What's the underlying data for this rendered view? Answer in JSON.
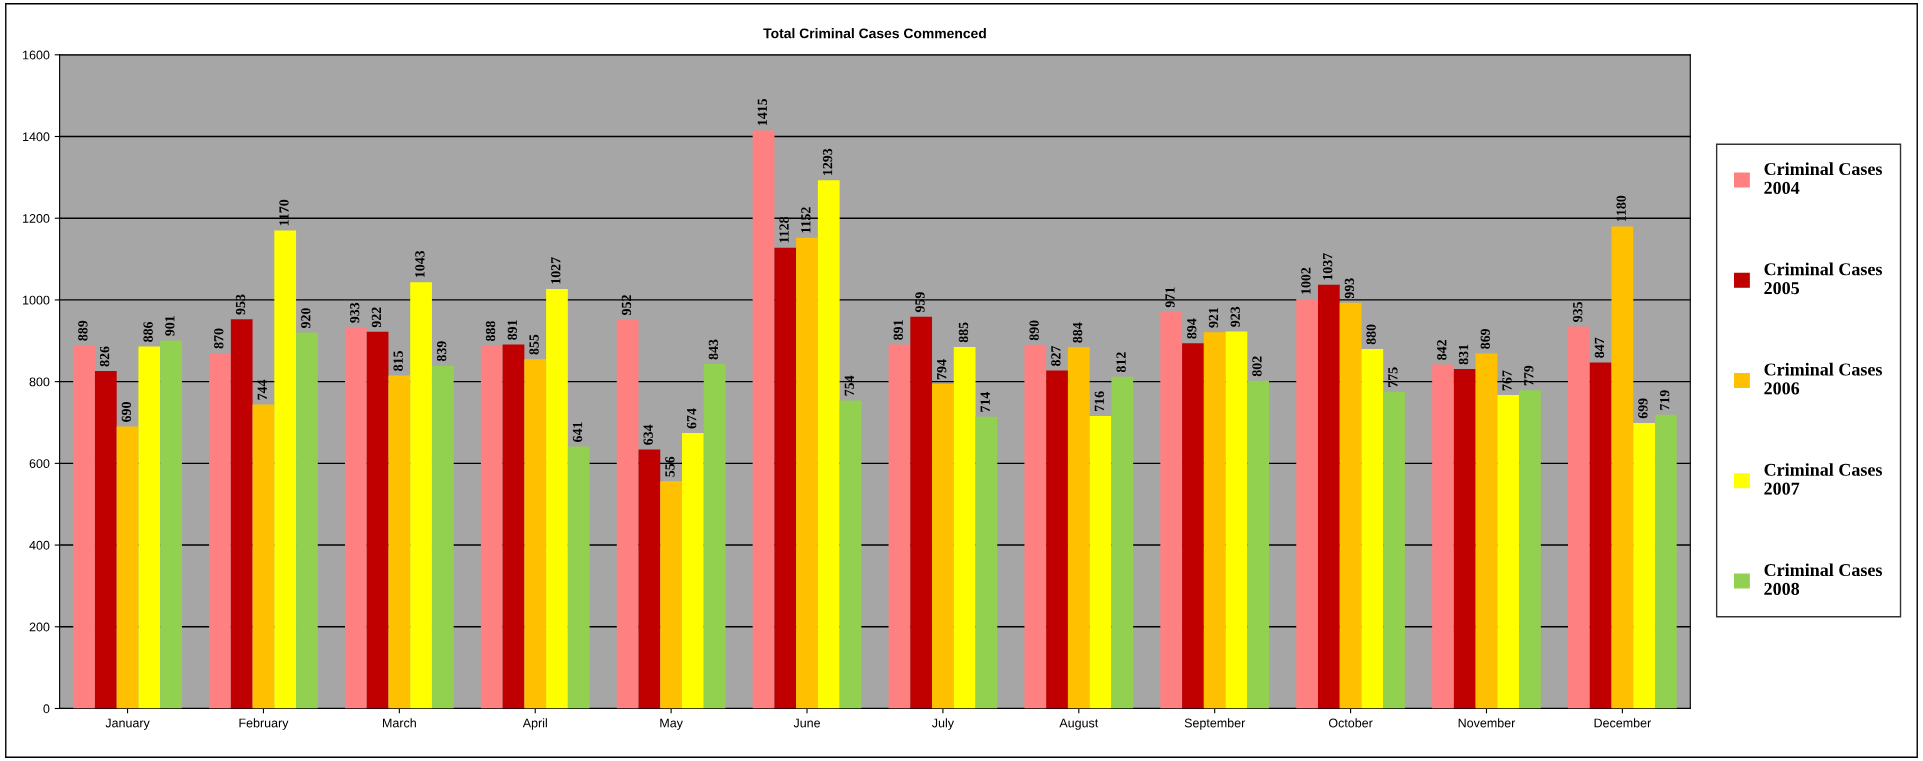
{
  "chart_data": {
    "type": "bar",
    "title": "Total Criminal Cases Commenced",
    "categories": [
      "January",
      "February",
      "March",
      "April",
      "May",
      "June",
      "July",
      "August",
      "September",
      "October",
      "November",
      "December"
    ],
    "series": [
      {
        "name": "Criminal Cases 2004",
        "color": "#ff8080",
        "values": [
          889,
          870,
          933,
          888,
          952,
          1415,
          891,
          890,
          971,
          1002,
          842,
          935
        ]
      },
      {
        "name": "Criminal Cases 2005",
        "color": "#c00000",
        "values": [
          826,
          953,
          922,
          891,
          634,
          1128,
          959,
          827,
          894,
          1037,
          831,
          847
        ]
      },
      {
        "name": "Criminal Cases 2006",
        "color": "#ffc000",
        "values": [
          690,
          744,
          815,
          855,
          556,
          1152,
          794,
          884,
          921,
          993,
          869,
          1180
        ]
      },
      {
        "name": "Criminal Cases 2007",
        "color": "#ffff00",
        "values": [
          886,
          1170,
          1043,
          1027,
          674,
          1293,
          885,
          716,
          923,
          880,
          767,
          699
        ]
      },
      {
        "name": "Criminal Cases 2008",
        "color": "#92d050",
        "values": [
          901,
          920,
          839,
          641,
          843,
          754,
          714,
          812,
          802,
          775,
          779,
          719
        ]
      }
    ],
    "ylim": [
      0,
      1600
    ],
    "yticks": [
      0,
      200,
      400,
      600,
      800,
      1000,
      1200,
      1400,
      1600
    ],
    "grid": "y",
    "legend": "right",
    "data_labels": true
  }
}
